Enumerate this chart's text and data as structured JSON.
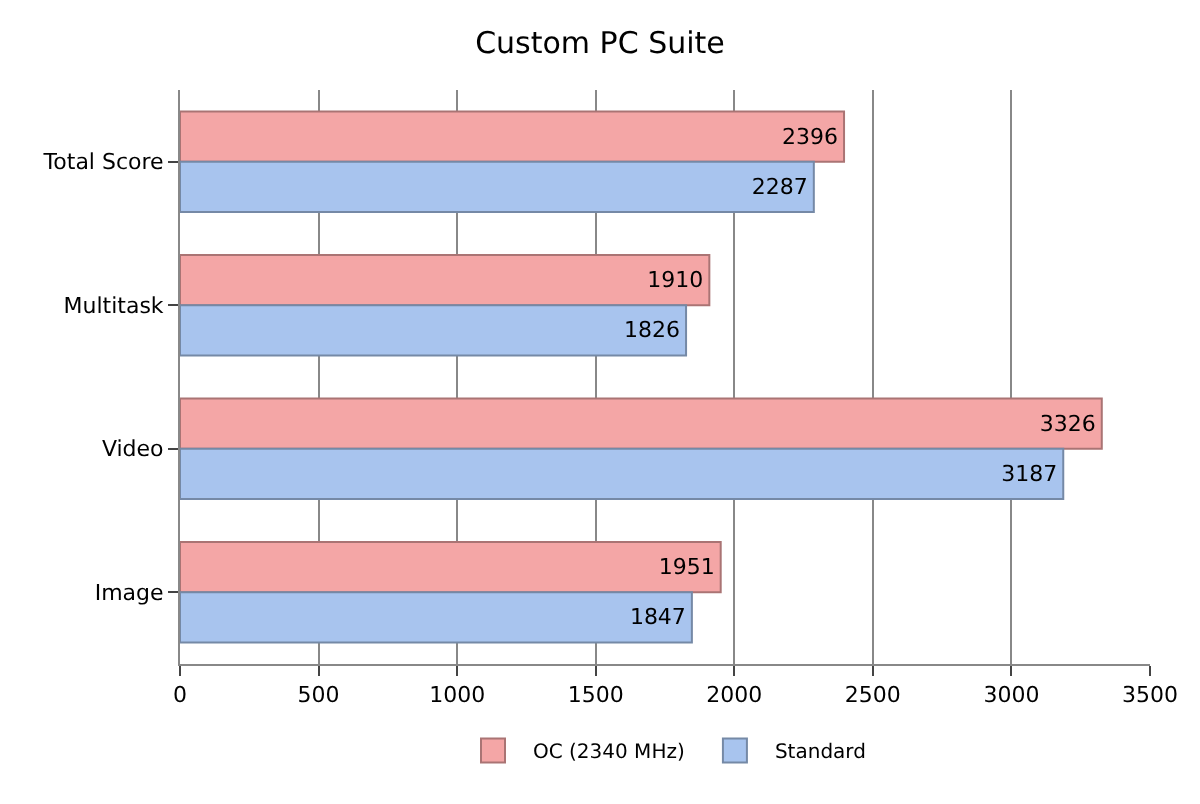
{
  "chart_data": {
    "type": "bar",
    "orientation": "horizontal",
    "title": "Custom PC Suite",
    "categories": [
      "Total Score",
      "Multitask",
      "Video",
      "Image"
    ],
    "series": [
      {
        "name": "OC (2340 MHz)",
        "color": "#f4a6a6",
        "values": [
          2396,
          1910,
          3326,
          1951
        ]
      },
      {
        "name": "Standard",
        "color": "#a8c4ee",
        "values": [
          2287,
          1826,
          3187,
          1847
        ]
      }
    ],
    "xlim": [
      0,
      3500
    ],
    "xticks": [
      0,
      500,
      1000,
      1500,
      2000,
      2500,
      3000,
      3500
    ],
    "grid": "x",
    "legend": "bottom",
    "data_labels": true
  }
}
